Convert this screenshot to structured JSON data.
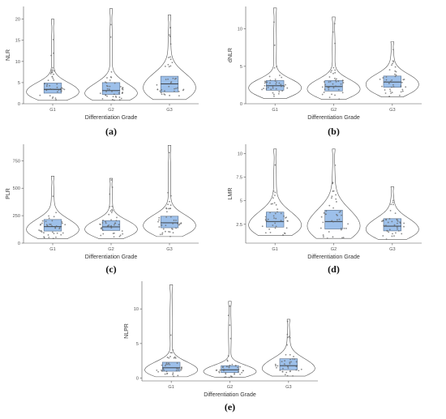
{
  "figure": {
    "panels": [
      "a",
      "b",
      "c",
      "d",
      "e"
    ],
    "panel_labels": [
      "(a)",
      "(b)",
      "(c)",
      "(d)",
      "(e)"
    ]
  },
  "style": {
    "box_fill": "#9dc0ea",
    "box_stroke": "#5a6f8a",
    "violin_stroke": "#555555",
    "point_color": "#666666",
    "axis_color": "#555555",
    "background": "#ffffff"
  },
  "chart_data": [
    {
      "panel": "(a)",
      "type": "violin",
      "xlabel": "Differentiation Grade",
      "ylabel": "NLR",
      "categories": [
        "G1",
        "G2",
        "G3"
      ],
      "yticks": [
        0,
        5,
        10,
        15,
        20
      ],
      "ylim": [
        0,
        23
      ],
      "grid": false,
      "summary": [
        {
          "group": "G1",
          "q1": 2.5,
          "median": 3.4,
          "q3": 4.9,
          "min": 0.8,
          "max": 20
        },
        {
          "group": "G2",
          "q1": 2.2,
          "median": 3.1,
          "q3": 5.0,
          "min": 0.8,
          "max": 22.5
        },
        {
          "group": "G3",
          "q1": 2.8,
          "median": 4.7,
          "q3": 6.5,
          "min": 1.0,
          "max": 21
        }
      ]
    },
    {
      "panel": "(b)",
      "type": "violin",
      "xlabel": "Differentiation Grade",
      "ylabel": "dNLR",
      "categories": [
        "G1",
        "G2",
        "G3"
      ],
      "yticks": [
        0,
        5,
        10
      ],
      "ylim": [
        0,
        13
      ],
      "grid": false,
      "summary": [
        {
          "group": "G1",
          "q1": 1.8,
          "median": 2.4,
          "q3": 3.1,
          "min": 0.7,
          "max": 12.8
        },
        {
          "group": "G2",
          "q1": 1.7,
          "median": 2.3,
          "q3": 3.1,
          "min": 0.6,
          "max": 11.6
        },
        {
          "group": "G3",
          "q1": 2.2,
          "median": 2.9,
          "q3": 3.7,
          "min": 0.9,
          "max": 8.3
        }
      ]
    },
    {
      "panel": "(c)",
      "type": "violin",
      "xlabel": "Differentiation Grade",
      "ylabel": "PLR",
      "categories": [
        "G1",
        "G2",
        "G3"
      ],
      "yticks": [
        0,
        250,
        500,
        750
      ],
      "ylim": [
        0,
        900
      ],
      "grid": false,
      "summary": [
        {
          "group": "G1",
          "q1": 110,
          "median": 150,
          "q3": 215,
          "min": 40,
          "max": 610
        },
        {
          "group": "G2",
          "q1": 115,
          "median": 148,
          "q3": 205,
          "min": 40,
          "max": 590
        },
        {
          "group": "G3",
          "q1": 140,
          "median": 185,
          "q3": 245,
          "min": 60,
          "max": 890
        }
      ]
    },
    {
      "panel": "(d)",
      "type": "violin",
      "xlabel": "Differentiation Grade",
      "ylabel": "LMR",
      "categories": [
        "G1",
        "G2",
        "G3"
      ],
      "yticks": [
        2.5,
        5.0,
        7.5,
        10.0
      ],
      "ylim": [
        0.5,
        11
      ],
      "grid": false,
      "summary": [
        {
          "group": "G1",
          "q1": 2.2,
          "median": 2.8,
          "q3": 3.8,
          "min": 1.3,
          "max": 10.5
        },
        {
          "group": "G2",
          "q1": 2.0,
          "median": 2.8,
          "q3": 4.0,
          "min": 1.0,
          "max": 10.5
        },
        {
          "group": "G3",
          "q1": 1.8,
          "median": 2.3,
          "q3": 3.1,
          "min": 0.9,
          "max": 6.5
        }
      ]
    },
    {
      "panel": "(e)",
      "type": "violin",
      "xlabel": "Differentiation Grade",
      "ylabel": "NLPR",
      "categories": [
        "G1",
        "G2",
        "G3"
      ],
      "yticks": [
        0,
        5,
        10
      ],
      "ylim": [
        -0.4,
        14
      ],
      "grid": false,
      "summary": [
        {
          "group": "G1",
          "q1": 1.0,
          "median": 1.5,
          "q3": 2.3,
          "min": 0.2,
          "max": 13.5
        },
        {
          "group": "G2",
          "q1": 0.8,
          "median": 1.2,
          "q3": 1.8,
          "min": 0.1,
          "max": 11.1
        },
        {
          "group": "G3",
          "q1": 1.2,
          "median": 1.8,
          "q3": 2.8,
          "min": 0.3,
          "max": 8.5
        }
      ]
    }
  ]
}
